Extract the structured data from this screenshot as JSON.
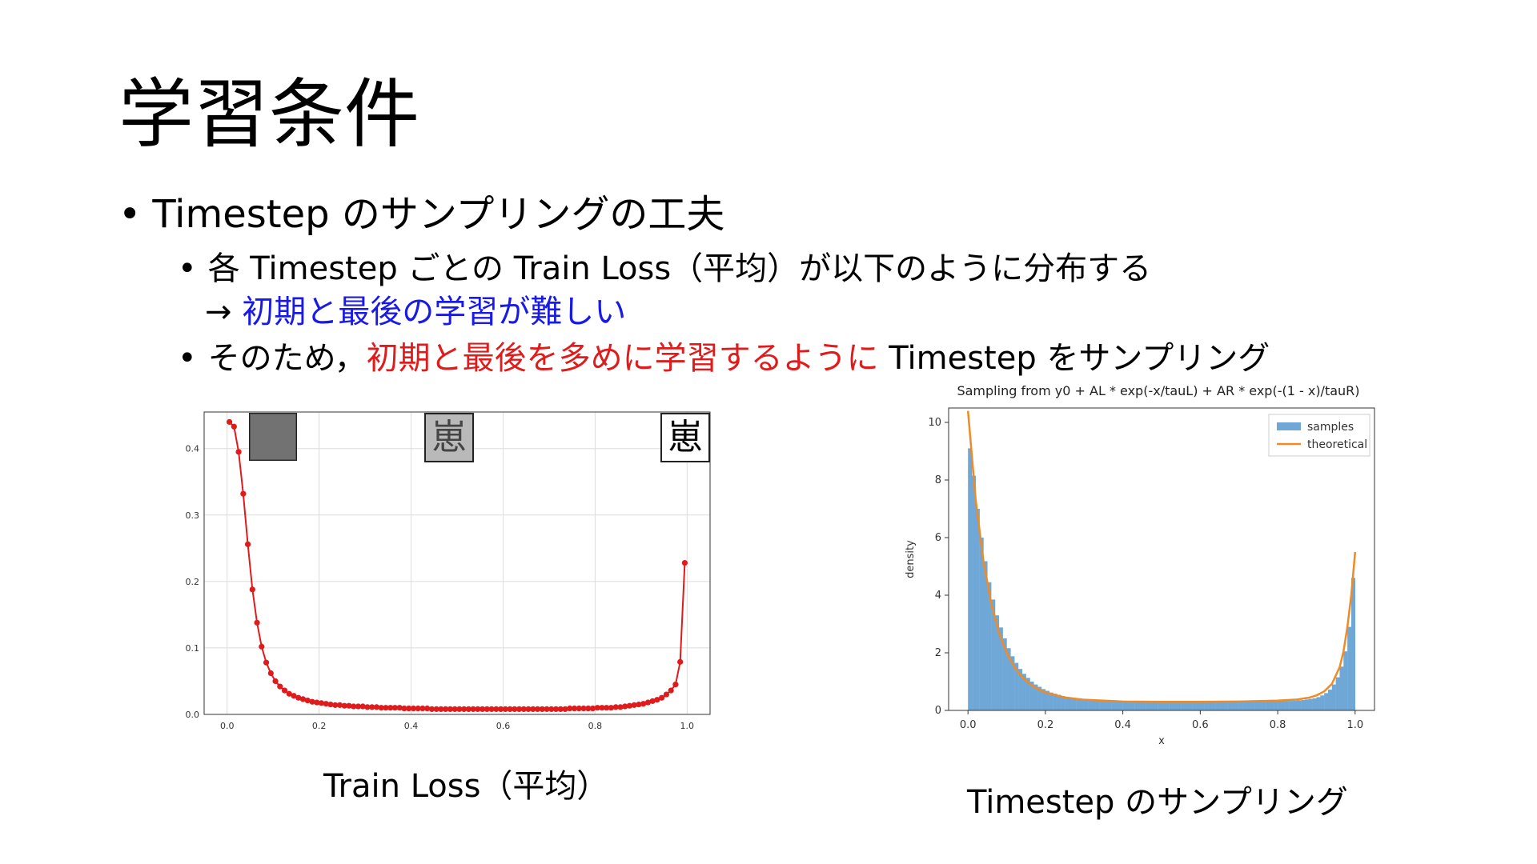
{
  "slide": {
    "title": "学習条件",
    "bullet_main": "Timestep のサンプリングの工夫",
    "sub1_line1": "各 Timestep ごとの Train Loss（平均）が以下のように分布する",
    "sub1_line2_prefix": "→ ",
    "sub1_line2_highlight": "初期と最後の学習が難しい",
    "sub2_prefix": "そのため，",
    "sub2_highlight": "初期と最後を多めに学習するように",
    "sub2_suffix": " Timestep をサンプリング",
    "caption_left": "Train Loss（平均）",
    "caption_right": "Timestep のサンプリング",
    "thumb_char": "崽",
    "colors": {
      "blue": "#1a1ae6",
      "red": "#e01b1b",
      "loss_line": "#e01b1b",
      "hist": "#6fa8d6",
      "theory": "#f08a24"
    }
  },
  "chart_data": [
    {
      "type": "line",
      "title": "",
      "xlabel": "",
      "ylabel": "",
      "xlim": [
        -0.05,
        1.05
      ],
      "ylim": [
        0,
        0.455
      ],
      "xticks": [
        0.0,
        0.2,
        0.4,
        0.6,
        0.8,
        1.0
      ],
      "xtick_labels": [
        "0.0",
        "0.2",
        "0.4",
        "0.6",
        "0.8",
        "1.0"
      ],
      "yticks": [
        0.0,
        0.1,
        0.2,
        0.3,
        0.4
      ],
      "ytick_labels": [
        "0.0",
        "0.1",
        "0.2",
        "0.3",
        "0.4"
      ],
      "grid": true,
      "x": [
        0.005,
        0.015,
        0.025,
        0.035,
        0.045,
        0.055,
        0.065,
        0.075,
        0.085,
        0.095,
        0.105,
        0.115,
        0.125,
        0.135,
        0.145,
        0.155,
        0.165,
        0.175,
        0.185,
        0.195,
        0.205,
        0.215,
        0.225,
        0.235,
        0.245,
        0.255,
        0.265,
        0.275,
        0.285,
        0.295,
        0.305,
        0.315,
        0.325,
        0.335,
        0.345,
        0.355,
        0.365,
        0.375,
        0.385,
        0.395,
        0.405,
        0.415,
        0.425,
        0.435,
        0.445,
        0.455,
        0.465,
        0.475,
        0.485,
        0.495,
        0.505,
        0.515,
        0.525,
        0.535,
        0.545,
        0.555,
        0.565,
        0.575,
        0.585,
        0.595,
        0.605,
        0.615,
        0.625,
        0.635,
        0.645,
        0.655,
        0.665,
        0.675,
        0.685,
        0.695,
        0.705,
        0.715,
        0.725,
        0.735,
        0.745,
        0.755,
        0.765,
        0.775,
        0.785,
        0.795,
        0.805,
        0.815,
        0.825,
        0.835,
        0.845,
        0.855,
        0.865,
        0.875,
        0.885,
        0.895,
        0.905,
        0.915,
        0.925,
        0.935,
        0.945,
        0.955,
        0.965,
        0.975,
        0.985,
        0.995
      ],
      "values": [
        0.44,
        0.433,
        0.395,
        0.332,
        0.256,
        0.188,
        0.138,
        0.102,
        0.078,
        0.062,
        0.05,
        0.042,
        0.036,
        0.031,
        0.028,
        0.025,
        0.023,
        0.021,
        0.019,
        0.018,
        0.017,
        0.016,
        0.015,
        0.014,
        0.014,
        0.013,
        0.013,
        0.012,
        0.012,
        0.012,
        0.011,
        0.011,
        0.011,
        0.01,
        0.01,
        0.01,
        0.01,
        0.01,
        0.009,
        0.009,
        0.009,
        0.009,
        0.009,
        0.009,
        0.008,
        0.008,
        0.008,
        0.008,
        0.008,
        0.008,
        0.008,
        0.008,
        0.008,
        0.008,
        0.008,
        0.008,
        0.008,
        0.008,
        0.008,
        0.008,
        0.008,
        0.008,
        0.008,
        0.008,
        0.008,
        0.008,
        0.008,
        0.008,
        0.008,
        0.008,
        0.008,
        0.008,
        0.008,
        0.008,
        0.009,
        0.009,
        0.009,
        0.009,
        0.009,
        0.009,
        0.01,
        0.01,
        0.01,
        0.01,
        0.011,
        0.011,
        0.012,
        0.013,
        0.014,
        0.015,
        0.016,
        0.018,
        0.02,
        0.022,
        0.025,
        0.03,
        0.036,
        0.045,
        0.079,
        0.228
      ]
    },
    {
      "type": "bar",
      "title": "Sampling from y0 + AL * exp(-x/tauL) + AR * exp(-(1 - x)/tauR)",
      "xlabel": "x",
      "ylabel": "density",
      "xlim": [
        -0.05,
        1.05
      ],
      "ylim": [
        0,
        10.5
      ],
      "xticks": [
        0.0,
        0.2,
        0.4,
        0.6,
        0.8,
        1.0
      ],
      "xtick_labels": [
        "0.0",
        "0.2",
        "0.4",
        "0.6",
        "0.8",
        "1.0"
      ],
      "yticks": [
        0,
        2,
        4,
        6,
        8,
        10
      ],
      "ytick_labels": [
        "0",
        "2",
        "4",
        "6",
        "8",
        "10"
      ],
      "legend": {
        "position": "top-right",
        "entries": [
          "samples",
          "theoretical"
        ]
      },
      "series": [
        {
          "name": "samples",
          "bins": 100,
          "values": [
            9.1,
            8.15,
            7.0,
            6.0,
            5.18,
            4.45,
            3.85,
            3.3,
            2.88,
            2.5,
            2.16,
            1.88,
            1.65,
            1.44,
            1.27,
            1.13,
            1.0,
            0.9,
            0.82,
            0.74,
            0.68,
            0.62,
            0.58,
            0.54,
            0.5,
            0.47,
            0.45,
            0.43,
            0.41,
            0.39,
            0.38,
            0.37,
            0.36,
            0.35,
            0.34,
            0.33,
            0.33,
            0.32,
            0.32,
            0.31,
            0.31,
            0.31,
            0.3,
            0.3,
            0.3,
            0.3,
            0.3,
            0.3,
            0.3,
            0.3,
            0.3,
            0.3,
            0.3,
            0.3,
            0.3,
            0.3,
            0.3,
            0.3,
            0.3,
            0.3,
            0.3,
            0.3,
            0.3,
            0.3,
            0.3,
            0.3,
            0.3,
            0.3,
            0.3,
            0.3,
            0.3,
            0.3,
            0.3,
            0.3,
            0.3,
            0.3,
            0.3,
            0.31,
            0.31,
            0.31,
            0.32,
            0.32,
            0.33,
            0.33,
            0.34,
            0.35,
            0.36,
            0.38,
            0.4,
            0.42,
            0.46,
            0.52,
            0.6,
            0.72,
            0.9,
            1.15,
            1.52,
            2.05,
            2.9,
            4.6
          ]
        },
        {
          "name": "theoretical",
          "type": "line",
          "x": [
            0.0,
            0.02,
            0.04,
            0.06,
            0.08,
            0.1,
            0.12,
            0.14,
            0.16,
            0.18,
            0.2,
            0.25,
            0.3,
            0.4,
            0.5,
            0.6,
            0.7,
            0.8,
            0.85,
            0.88,
            0.9,
            0.92,
            0.94,
            0.96,
            0.97,
            0.98,
            0.99,
            1.0
          ],
          "values": [
            10.4,
            7.3,
            5.18,
            3.72,
            2.7,
            2.0,
            1.5,
            1.15,
            0.92,
            0.74,
            0.62,
            0.45,
            0.37,
            0.31,
            0.3,
            0.3,
            0.31,
            0.34,
            0.38,
            0.44,
            0.52,
            0.66,
            0.92,
            1.5,
            2.05,
            2.9,
            4.0,
            5.5
          ]
        }
      ]
    }
  ]
}
